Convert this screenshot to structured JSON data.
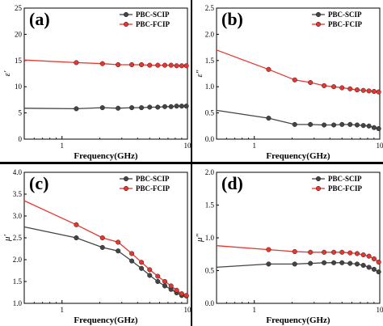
{
  "chart_data": [
    {
      "type": "line",
      "panel_label": "(a)",
      "ylabel": "ε′",
      "xlabel": "Frequency(GHz)",
      "xscale": "log",
      "xlim": [
        0.5,
        10
      ],
      "ylim": [
        0,
        25
      ],
      "yticks": [
        0,
        5,
        10,
        15,
        20,
        25
      ],
      "xticks": [
        {
          "value": 1,
          "label": "1"
        },
        {
          "value": 10,
          "label": "10"
        }
      ],
      "legend_position": "top-right",
      "series": [
        {
          "name": "PBC-SCIP",
          "color": "#444444",
          "x": [
            0.5,
            1.3,
            2.1,
            2.8,
            3.6,
            4.3,
            5.0,
            5.8,
            6.6,
            7.4,
            8.2,
            9.0,
            9.8
          ],
          "y": [
            5.9,
            5.8,
            6.0,
            5.9,
            6.0,
            6.0,
            6.1,
            6.1,
            6.2,
            6.2,
            6.3,
            6.3,
            6.3
          ]
        },
        {
          "name": "PBC-FCIP",
          "color": "#e8352d",
          "x": [
            0.5,
            1.3,
            2.1,
            2.8,
            3.6,
            4.3,
            5.0,
            5.8,
            6.6,
            7.4,
            8.2,
            9.0,
            9.8
          ],
          "y": [
            15.1,
            14.6,
            14.4,
            14.2,
            14.2,
            14.2,
            14.1,
            14.1,
            14.1,
            14.1,
            14.0,
            14.0,
            14.0
          ]
        }
      ]
    },
    {
      "type": "line",
      "panel_label": "(b)",
      "ylabel": "ε″",
      "xlabel": "Frequency(GHz)",
      "xscale": "log",
      "xlim": [
        0.5,
        10
      ],
      "ylim": [
        0,
        2.5
      ],
      "yticks": [
        0.0,
        0.5,
        1.0,
        1.5,
        2.0,
        2.5
      ],
      "xticks": [
        {
          "value": 1,
          "label": "1"
        },
        {
          "value": 10,
          "label": "10"
        }
      ],
      "legend_position": "top-right",
      "series": [
        {
          "name": "PBC-SCIP",
          "color": "#444444",
          "x": [
            0.5,
            1.3,
            2.1,
            2.8,
            3.6,
            4.3,
            5.0,
            5.8,
            6.6,
            7.4,
            8.2,
            9.0,
            9.8
          ],
          "y": [
            0.55,
            0.4,
            0.28,
            0.28,
            0.27,
            0.27,
            0.28,
            0.28,
            0.27,
            0.26,
            0.25,
            0.22,
            0.2
          ]
        },
        {
          "name": "PBC-FCIP",
          "color": "#e8352d",
          "x": [
            0.5,
            1.3,
            2.1,
            2.8,
            3.6,
            4.3,
            5.0,
            5.8,
            6.6,
            7.4,
            8.2,
            9.0,
            9.8
          ],
          "y": [
            1.7,
            1.33,
            1.13,
            1.08,
            1.02,
            1.0,
            0.98,
            0.96,
            0.94,
            0.93,
            0.92,
            0.91,
            0.9
          ]
        }
      ]
    },
    {
      "type": "line",
      "panel_label": "(c)",
      "ylabel": "μ′",
      "xlabel": "Frequency(GHz)",
      "xscale": "log",
      "xlim": [
        0.5,
        10
      ],
      "ylim": [
        1.0,
        4.0
      ],
      "yticks": [
        1.0,
        1.5,
        2.0,
        2.5,
        3.0,
        3.5,
        4.0
      ],
      "xticks": [
        {
          "value": 1,
          "label": "1"
        },
        {
          "value": 10,
          "label": "10"
        }
      ],
      "legend_position": "top-right",
      "series": [
        {
          "name": "PBC-SCIP",
          "color": "#444444",
          "x": [
            0.5,
            1.3,
            2.1,
            2.8,
            3.6,
            4.3,
            5.0,
            5.8,
            6.6,
            7.4,
            8.2,
            9.0,
            9.8
          ],
          "y": [
            2.75,
            2.5,
            2.28,
            2.2,
            1.97,
            1.8,
            1.64,
            1.5,
            1.4,
            1.32,
            1.24,
            1.18,
            1.17
          ]
        },
        {
          "name": "PBC-FCIP",
          "color": "#e8352d",
          "x": [
            0.5,
            1.3,
            2.1,
            2.8,
            3.6,
            4.3,
            5.0,
            5.8,
            6.6,
            7.4,
            8.2,
            9.0,
            9.8
          ],
          "y": [
            3.35,
            2.8,
            2.5,
            2.4,
            2.14,
            1.94,
            1.77,
            1.62,
            1.5,
            1.4,
            1.3,
            1.22,
            1.18
          ]
        }
      ]
    },
    {
      "type": "line",
      "panel_label": "(d)",
      "ylabel": "μ″",
      "xlabel": "Frequency(GHz)",
      "xscale": "log",
      "xlim": [
        0.5,
        10
      ],
      "ylim": [
        0,
        2.0
      ],
      "yticks": [
        0.0,
        0.5,
        1.0,
        1.5,
        2.0
      ],
      "xticks": [
        {
          "value": 1,
          "label": "1"
        },
        {
          "value": 10,
          "label": "10"
        }
      ],
      "legend_position": "top-right",
      "series": [
        {
          "name": "PBC-SCIP",
          "color": "#444444",
          "x": [
            0.5,
            1.3,
            2.1,
            2.8,
            3.6,
            4.3,
            5.0,
            5.8,
            6.6,
            7.4,
            8.2,
            9.0,
            9.8
          ],
          "y": [
            0.55,
            0.6,
            0.6,
            0.61,
            0.62,
            0.62,
            0.62,
            0.61,
            0.6,
            0.58,
            0.55,
            0.52,
            0.48
          ]
        },
        {
          "name": "PBC-FCIP",
          "color": "#e8352d",
          "x": [
            0.5,
            1.3,
            2.1,
            2.8,
            3.6,
            4.3,
            5.0,
            5.8,
            6.6,
            7.4,
            8.2,
            9.0,
            9.8
          ],
          "y": [
            0.88,
            0.82,
            0.79,
            0.78,
            0.78,
            0.78,
            0.78,
            0.77,
            0.76,
            0.74,
            0.72,
            0.68,
            0.63
          ]
        }
      ]
    }
  ]
}
